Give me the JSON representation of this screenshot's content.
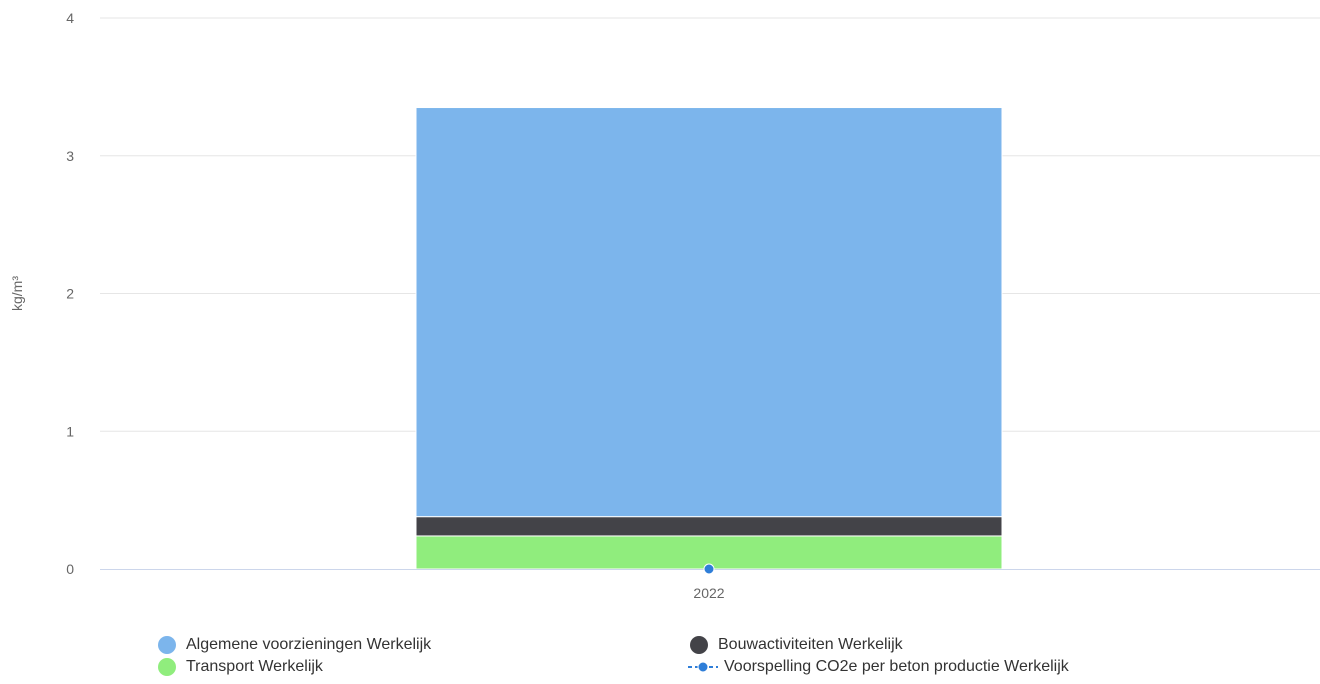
{
  "chart_data": {
    "type": "bar",
    "stacked": true,
    "categories": [
      "2022"
    ],
    "series": [
      {
        "name": "Transport Werkelijk",
        "type": "bar",
        "color": "#90ed7d",
        "values": [
          0.24
        ]
      },
      {
        "name": "Bouwactiviteiten Werkelijk",
        "type": "bar",
        "color": "#434348",
        "values": [
          0.14
        ]
      },
      {
        "name": "Algemene voorzieningen Werkelijk",
        "type": "bar",
        "color": "#7cb5ec",
        "values": [
          2.97
        ]
      },
      {
        "name": "Voorspelling CO2e per beton productie Werkelijk",
        "type": "line",
        "color": "#2f7ed8",
        "values": [
          0
        ]
      }
    ],
    "ylabel": "kg/m³",
    "ylim": [
      0,
      4
    ],
    "yticks": [
      "0",
      "1",
      "2",
      "3",
      "4"
    ],
    "grid": true,
    "legend_position": "bottom"
  },
  "legend": [
    {
      "key": "algemene",
      "label": "Algemene voorzieningen Werkelijk",
      "color": "#7cb5ec",
      "symbol": "dot"
    },
    {
      "key": "bouw",
      "label": "Bouwactiviteiten Werkelijk",
      "color": "#434348",
      "symbol": "dot"
    },
    {
      "key": "transport",
      "label": "Transport Werkelijk",
      "color": "#90ed7d",
      "symbol": "dot"
    },
    {
      "key": "voorspelling",
      "label": "Voorspelling CO2e per beton productie Werkelijk",
      "color": "#2f7ed8",
      "symbol": "line-dot"
    }
  ]
}
